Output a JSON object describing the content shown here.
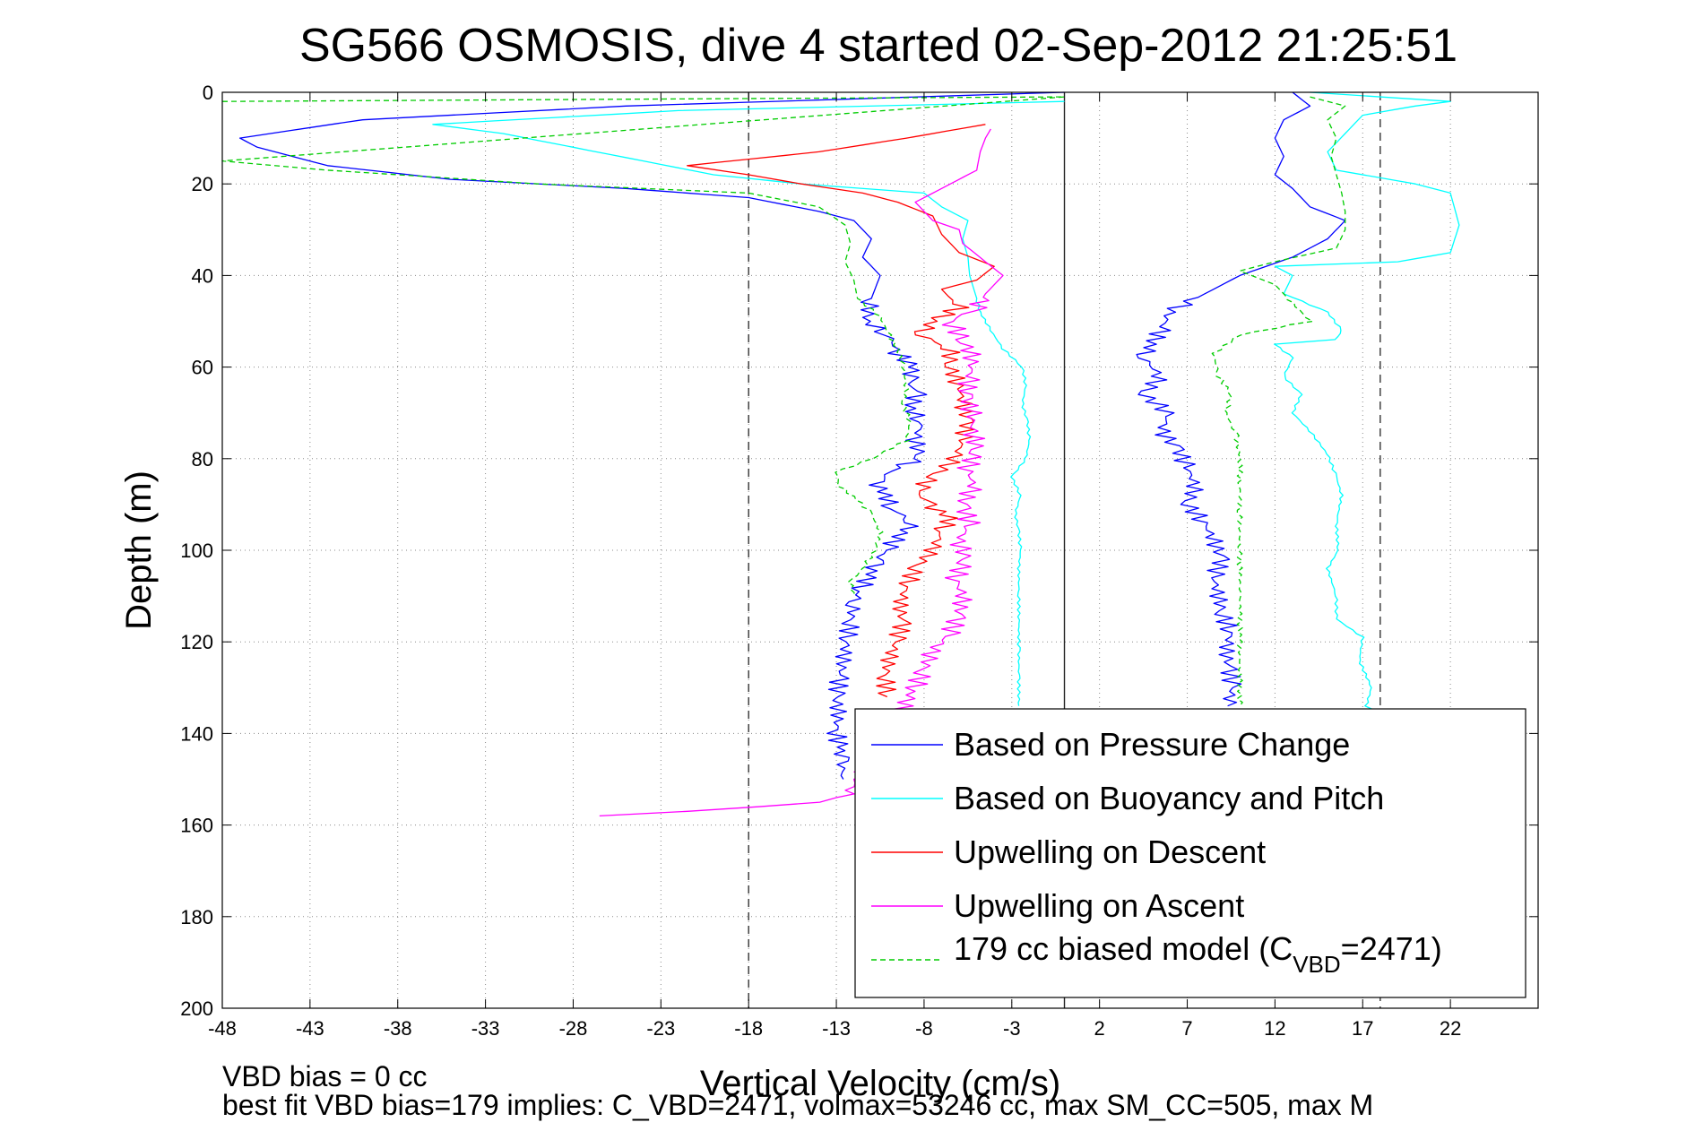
{
  "chart_data": {
    "type": "line",
    "title": "SG566 OSMOSIS, dive 4 started 02-Sep-2012 21:25:51",
    "xlabel": "Vertical Velocity (cm/s)",
    "ylabel": "Depth (m)",
    "xlim": [
      -48,
      27
    ],
    "ylim": [
      0,
      200
    ],
    "y_reversed": true,
    "grid": true,
    "x_ticks": [
      -48,
      -43,
      -38,
      -33,
      -28,
      -23,
      -18,
      -13,
      -8,
      -3,
      2,
      7,
      12,
      17,
      22
    ],
    "y_ticks": [
      0,
      20,
      40,
      60,
      80,
      100,
      120,
      140,
      160,
      180,
      200
    ],
    "reference_lines": {
      "dashed_x": [
        -18,
        18
      ],
      "solid_x": [
        0
      ]
    },
    "legend_position": "bottom-right",
    "notes": [
      "VBD bias = 0 cc",
      "best fit VBD bias=179 implies: C_VBD=2471, volmax=53246 cc, max SM_CC=505, max M"
    ],
    "series": [
      {
        "name": "Based on Pressure Change",
        "color": "#0000ff",
        "style": "solid",
        "points": [
          [
            0,
            0
          ],
          [
            -25,
            3
          ],
          [
            -40,
            6
          ],
          [
            -47,
            10
          ],
          [
            -46,
            12
          ],
          [
            -42,
            16
          ],
          [
            -35,
            19
          ],
          [
            -25,
            21
          ],
          [
            -18,
            23
          ],
          [
            -14,
            26
          ],
          [
            -12,
            28
          ],
          [
            -11,
            32
          ],
          [
            -11.5,
            36
          ],
          [
            -10.5,
            40
          ],
          [
            -11,
            45
          ],
          [
            -11.3,
            50
          ],
          [
            -10,
            53
          ],
          [
            -9.5,
            57
          ],
          [
            -8.6,
            60
          ],
          [
            -8.9,
            63
          ],
          [
            -8.4,
            66
          ],
          [
            -8.8,
            69
          ],
          [
            -8.1,
            72
          ],
          [
            -8.5,
            76
          ],
          [
            -8.2,
            80
          ],
          [
            -9.5,
            82
          ],
          [
            -10.8,
            85
          ],
          [
            -10.2,
            88
          ],
          [
            -9.8,
            91
          ],
          [
            -8.6,
            94
          ],
          [
            -9.4,
            97
          ],
          [
            -10.2,
            100
          ],
          [
            -10.8,
            103
          ],
          [
            -11.2,
            106
          ],
          [
            -11.7,
            109
          ],
          [
            -12,
            112
          ],
          [
            -12.2,
            116
          ],
          [
            -12.4,
            120
          ],
          [
            -12.6,
            124
          ],
          [
            -12.8,
            128
          ],
          [
            -13,
            132
          ],
          [
            -12.9,
            136
          ],
          [
            -13,
            140
          ],
          [
            -12.8,
            143
          ],
          [
            -12.7,
            146
          ],
          [
            -12.6,
            150
          ]
        ],
        "points_right": [
          [
            13,
            0
          ],
          [
            14,
            3
          ],
          [
            12.5,
            6
          ],
          [
            12,
            10
          ],
          [
            12.5,
            14
          ],
          [
            12,
            18
          ],
          [
            13,
            21
          ],
          [
            14,
            25
          ],
          [
            16,
            28
          ],
          [
            15,
            32
          ],
          [
            13,
            36
          ],
          [
            10,
            40
          ],
          [
            8,
            44
          ],
          [
            6,
            48
          ],
          [
            5.5,
            52
          ],
          [
            5,
            55
          ],
          [
            4.5,
            58
          ],
          [
            5.5,
            62
          ],
          [
            4.5,
            66
          ],
          [
            6,
            70
          ],
          [
            5.5,
            74
          ],
          [
            6.5,
            78
          ],
          [
            7,
            82
          ],
          [
            7.5,
            86
          ],
          [
            7,
            90
          ],
          [
            8,
            94
          ],
          [
            8.5,
            98
          ],
          [
            9,
            102
          ],
          [
            8.5,
            106
          ],
          [
            8.8,
            110
          ],
          [
            9,
            114
          ],
          [
            9.5,
            118
          ],
          [
            9.2,
            122
          ],
          [
            9.4,
            126
          ],
          [
            9.6,
            130
          ],
          [
            9.3,
            134
          ]
        ]
      },
      {
        "name": "Based on Buoyancy and Pitch",
        "color": "#00ffff",
        "style": "solid",
        "points": [
          [
            0,
            2
          ],
          [
            -22,
            4
          ],
          [
            -36,
            7
          ],
          [
            -32,
            9
          ],
          [
            -28,
            12
          ],
          [
            -24,
            15
          ],
          [
            -20,
            18
          ],
          [
            -15,
            20
          ],
          [
            -8,
            22
          ],
          [
            -7,
            25
          ],
          [
            -5.5,
            28
          ],
          [
            -5.8,
            32
          ],
          [
            -5.5,
            36
          ],
          [
            -5.4,
            40
          ],
          [
            -5,
            45
          ],
          [
            -4.8,
            48
          ],
          [
            -4.2,
            52
          ],
          [
            -3.5,
            56
          ],
          [
            -2.4,
            60
          ],
          [
            -2.2,
            64
          ],
          [
            -2.4,
            68
          ],
          [
            -2.1,
            72
          ],
          [
            -2,
            76
          ],
          [
            -2.2,
            80
          ],
          [
            -3,
            84
          ],
          [
            -2.5,
            88
          ],
          [
            -2.8,
            92
          ],
          [
            -2.6,
            96
          ],
          [
            -2.5,
            100
          ],
          [
            -2.6,
            104
          ],
          [
            -2.6,
            110
          ],
          [
            -2.6,
            116
          ],
          [
            -2.6,
            122
          ],
          [
            -2.6,
            128
          ],
          [
            -2.6,
            134
          ]
        ],
        "points_right": [
          [
            14,
            0
          ],
          [
            22,
            2
          ],
          [
            20,
            3
          ],
          [
            17,
            5
          ],
          [
            16,
            9
          ],
          [
            15,
            13
          ],
          [
            15.5,
            17
          ],
          [
            20,
            20
          ],
          [
            22,
            22
          ],
          [
            22.5,
            29
          ],
          [
            22,
            35
          ],
          [
            19,
            37
          ],
          [
            12,
            38
          ],
          [
            13,
            40
          ],
          [
            12.5,
            44
          ],
          [
            15,
            48
          ],
          [
            15.8,
            52
          ],
          [
            15.5,
            54
          ],
          [
            12,
            55
          ],
          [
            13,
            58
          ],
          [
            12.5,
            62
          ],
          [
            13.5,
            66
          ],
          [
            13,
            70
          ],
          [
            14,
            74
          ],
          [
            15,
            79
          ],
          [
            15.5,
            84
          ],
          [
            15.8,
            88
          ],
          [
            15.5,
            94
          ],
          [
            15.6,
            100
          ],
          [
            15,
            104
          ],
          [
            15.5,
            110
          ],
          [
            15.5,
            115
          ],
          [
            17,
            119
          ],
          [
            16.8,
            124
          ],
          [
            17.5,
            130
          ],
          [
            17.2,
            134
          ],
          [
            18,
            136
          ]
        ]
      },
      {
        "name": "Upwelling on Descent",
        "color": "#ff0000",
        "style": "solid",
        "points": [
          [
            -4.5,
            7
          ],
          [
            -9,
            10
          ],
          [
            -14,
            13
          ],
          [
            -21.5,
            16
          ],
          [
            -18,
            18
          ],
          [
            -15,
            20
          ],
          [
            -11.5,
            22
          ],
          [
            -9.5,
            24
          ],
          [
            -7.5,
            27
          ],
          [
            -7,
            31
          ],
          [
            -6,
            35
          ],
          [
            -4,
            38
          ],
          [
            -5,
            41
          ],
          [
            -7,
            43
          ],
          [
            -6,
            47
          ],
          [
            -7.5,
            50
          ],
          [
            -8.2,
            53
          ],
          [
            -6.5,
            56
          ],
          [
            -6.5,
            60
          ],
          [
            -6,
            64
          ],
          [
            -5.8,
            68
          ],
          [
            -5.5,
            72
          ],
          [
            -5.8,
            76
          ],
          [
            -6.2,
            80
          ],
          [
            -7.5,
            84
          ],
          [
            -8.4,
            87
          ],
          [
            -7.8,
            90
          ],
          [
            -6.5,
            93
          ],
          [
            -7,
            96
          ],
          [
            -7.5,
            100
          ],
          [
            -8.5,
            104
          ],
          [
            -9,
            108
          ],
          [
            -9.4,
            112
          ],
          [
            -9.2,
            116
          ],
          [
            -9.6,
            120
          ],
          [
            -10,
            124
          ],
          [
            -10.2,
            128
          ],
          [
            -10.1,
            132
          ]
        ]
      },
      {
        "name": "Upwelling on Ascent",
        "color": "#ff00ff",
        "style": "solid",
        "points": [
          [
            -26.5,
            158
          ],
          [
            -22,
            157
          ],
          [
            -18,
            156
          ],
          [
            -14,
            155
          ],
          [
            -12.5,
            154
          ],
          [
            -8.5,
            130
          ],
          [
            -8,
            126
          ],
          [
            -7.5,
            122
          ],
          [
            -6.5,
            118
          ],
          [
            -6,
            114
          ],
          [
            -5.8,
            110
          ],
          [
            -6.2,
            106
          ],
          [
            -5.6,
            102
          ],
          [
            -6,
            98
          ],
          [
            -5.4,
            94
          ],
          [
            -5.8,
            90
          ],
          [
            -5.2,
            86
          ],
          [
            -5.5,
            82
          ],
          [
            -5,
            78
          ],
          [
            -5.2,
            74
          ],
          [
            -5.3,
            70
          ],
          [
            -5.6,
            66
          ],
          [
            -5.4,
            62
          ],
          [
            -5.2,
            58
          ],
          [
            -5.8,
            54
          ],
          [
            -6.5,
            50
          ],
          [
            -5,
            47
          ],
          [
            -4.5,
            44
          ],
          [
            -3.5,
            40
          ],
          [
            -4.5,
            37
          ],
          [
            -5.8,
            33
          ],
          [
            -6,
            30
          ],
          [
            -7.5,
            28
          ],
          [
            -8.5,
            24
          ],
          [
            -6.5,
            20
          ],
          [
            -5,
            17
          ],
          [
            -4.8,
            13
          ],
          [
            -4.5,
            10
          ],
          [
            -4.2,
            8
          ]
        ]
      },
      {
        "name": "179 cc biased model (C_VBD=2471)",
        "color": "#00cc00",
        "style": "dashed",
        "points": [
          [
            -48,
            2
          ],
          [
            -25,
            1.5
          ],
          [
            0,
            1
          ],
          [
            -48,
            15
          ],
          [
            -42,
            17
          ],
          [
            -30,
            20
          ],
          [
            -18,
            22
          ],
          [
            -14,
            25
          ],
          [
            -12.5,
            29
          ],
          [
            -12.2,
            33
          ],
          [
            -12.5,
            37
          ],
          [
            -12,
            41
          ],
          [
            -11.8,
            45
          ],
          [
            -10.5,
            49
          ],
          [
            -10,
            53
          ],
          [
            -9.5,
            56
          ],
          [
            -9.2,
            60
          ],
          [
            -9,
            64
          ],
          [
            -9.2,
            68
          ],
          [
            -8.8,
            72
          ],
          [
            -9,
            76
          ],
          [
            -11,
            80
          ],
          [
            -13,
            83
          ],
          [
            -12.8,
            86
          ],
          [
            -11.8,
            89
          ],
          [
            -11,
            92
          ],
          [
            -10.5,
            96
          ],
          [
            -10.8,
            100
          ],
          [
            -11.5,
            104
          ],
          [
            -12.2,
            107
          ],
          [
            -12,
            110
          ]
        ],
        "points_right": [
          [
            14,
            1
          ],
          [
            16,
            3
          ],
          [
            15,
            6
          ],
          [
            15.5,
            10
          ],
          [
            15.2,
            14
          ],
          [
            15.5,
            18
          ],
          [
            15.8,
            22
          ],
          [
            16,
            26
          ],
          [
            16,
            30
          ],
          [
            15.5,
            34
          ],
          [
            12,
            37
          ],
          [
            10,
            39
          ],
          [
            12,
            42
          ],
          [
            13,
            46
          ],
          [
            14,
            50
          ],
          [
            10,
            53
          ],
          [
            8.5,
            57
          ],
          [
            8.8,
            62
          ],
          [
            9.5,
            66
          ],
          [
            9.2,
            70
          ],
          [
            9.8,
            75
          ],
          [
            10,
            80
          ],
          [
            10,
            86
          ],
          [
            10,
            92
          ],
          [
            10,
            100
          ],
          [
            10,
            110
          ],
          [
            10,
            120
          ],
          [
            10,
            130
          ],
          [
            10,
            134
          ]
        ]
      }
    ]
  }
}
